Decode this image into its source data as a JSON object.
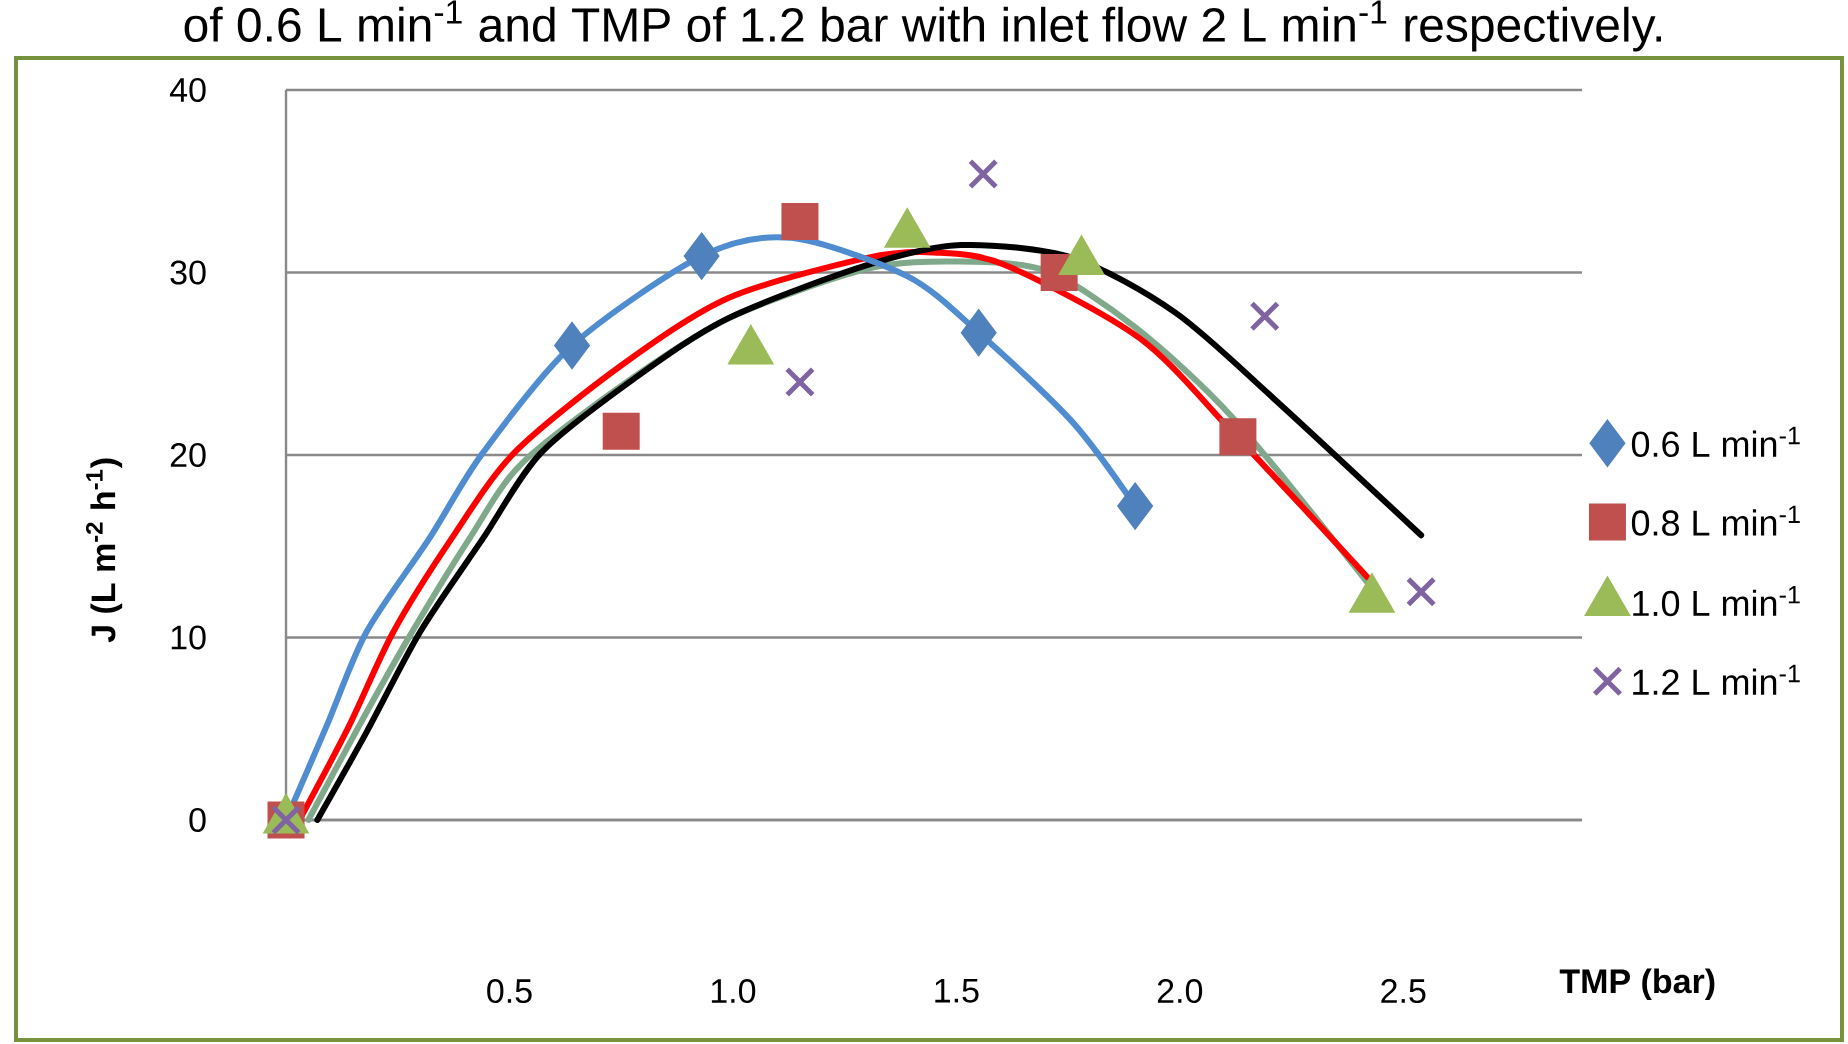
{
  "chart_data": {
    "type": "scatter",
    "annotations": [
      "of 0.6 L min$^{-1}$ and TMP of 1.2 bar with inlet flow 2 L min$^{-1}$ respectively."
    ],
    "xlabel": "TMP (bar)",
    "ylabel": "J (L m$^{-2}$ h$^{-1}$)",
    "xlim": [
      0,
      2.9
    ],
    "ylim": [
      0,
      40
    ],
    "xticks": [
      0.5,
      {
        "value": 1,
        "label": "1.0"
      },
      1.5,
      {
        "value": 2,
        "label": "2.0"
      },
      2.5
    ],
    "yticks": [
      0,
      10,
      20,
      30,
      40
    ],
    "grid": "y",
    "legend": "right",
    "series": [
      {
        "name": "0.6 L min$^{-1}$",
        "marker": "diamond",
        "color": "#4f81bd",
        "x": [
          0.64,
          0.93,
          1.55,
          1.9
        ],
        "values": [
          26,
          30.9,
          26.7,
          17.2
        ]
      },
      {
        "name": "0.8 L min$^{-1}$",
        "marker": "square",
        "color": "#c0504d",
        "x": [
          0,
          0.75,
          1.15,
          1.73,
          2.13
        ],
        "values": [
          0,
          21.3,
          32.8,
          30,
          21
        ]
      },
      {
        "name": "1.0 L min$^{-1}$",
        "marker": "triangle",
        "color": "#9bbb59",
        "x": [
          0,
          1.04,
          1.39,
          1.78,
          2.43
        ],
        "values": [
          0,
          25.7,
          32.1,
          30.6,
          12.1
        ]
      },
      {
        "name": "1.2 L min$^{-1}$",
        "marker": "cross",
        "color": "#8064a2",
        "x": [
          0,
          1.15,
          1.56,
          2.19,
          2.54
        ],
        "values": [
          0,
          24,
          35.4,
          27.6,
          12.5
        ]
      },
      {
        "type": "line",
        "marker": "none",
        "line_style": "solid",
        "color": "#7fa98a",
        "x": [
          0.05,
          0.16,
          0.27,
          0.41,
          0.53,
          0.78,
          1.0,
          1.3,
          1.5,
          1.7,
          1.9,
          2.12,
          2.42
        ],
        "values": [
          0,
          5,
          9.8,
          15.4,
          19.6,
          24.3,
          27.6,
          30.2,
          30.6,
          30.1,
          27,
          22,
          13
        ]
      },
      {
        "type": "line",
        "marker": "none",
        "line_style": "solid",
        "color": "#ff0000",
        "x": [
          0.03,
          0.14,
          0.24,
          0.37,
          0.51,
          0.75,
          0.99,
          1.3,
          1.45,
          1.61,
          1.91,
          2.12,
          2.42
        ],
        "values": [
          0,
          5.1,
          10.3,
          15.4,
          20.1,
          24.9,
          28.6,
          30.8,
          31.1,
          30.4,
          26.4,
          21.2,
          13.3
        ]
      },
      {
        "type": "line",
        "marker": "none",
        "line_style": "solid",
        "color": "#000000",
        "x": [
          0.07,
          0.18,
          0.3,
          0.44,
          0.57,
          0.78,
          0.99,
          1.3,
          1.51,
          1.76,
          1.99,
          2.21,
          2.54
        ],
        "values": [
          0,
          4.8,
          10.3,
          15.4,
          20.1,
          24.2,
          27.5,
          30.4,
          31.5,
          30.8,
          27.8,
          23.1,
          15.6
        ]
      },
      {
        "type": "line",
        "marker": "none",
        "line_style": "solid",
        "color": "#4f8cd0",
        "x": [
          0,
          0.09,
          0.18,
          0.32,
          0.44,
          0.64,
          0.93,
          1.13,
          1.39,
          1.55,
          1.76,
          1.9
        ],
        "values": [
          0,
          5.1,
          10.3,
          15.4,
          20.1,
          26,
          30.9,
          31.9,
          29.8,
          26.7,
          21.8,
          17.2
        ]
      }
    ]
  }
}
